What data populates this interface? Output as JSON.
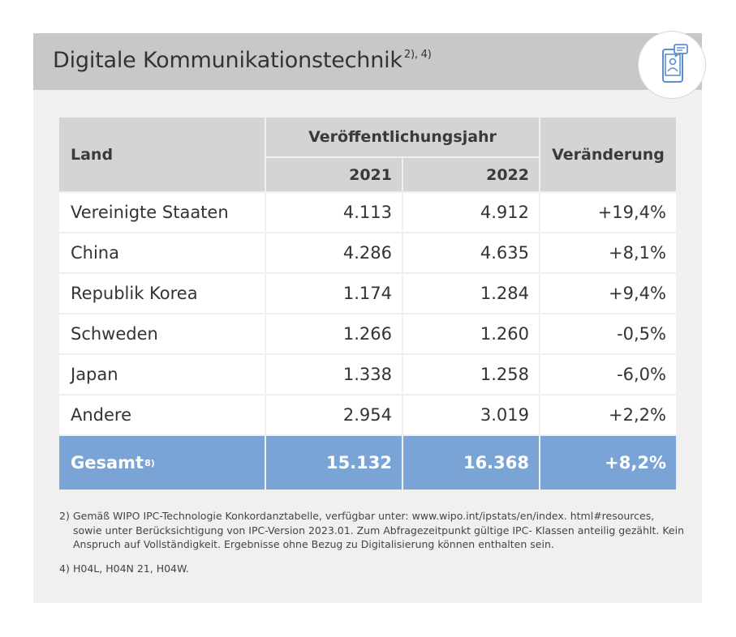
{
  "title": "Digitale Kommunikationstechnik",
  "title_footnotes": "2), 4)",
  "badge_icon": "mobile-chat-icon",
  "accent_color": "#7ba4d6",
  "table": {
    "col_land": "Land",
    "col_group": "Veröffentlichungsjahr",
    "col_y1": "2021",
    "col_y2": "2022",
    "col_change": "Veränderung",
    "rows": [
      {
        "land": "Vereinigte Staaten",
        "y1": "4.113",
        "y2": "4.912",
        "change": "+19,4%"
      },
      {
        "land": "China",
        "y1": "4.286",
        "y2": "4.635",
        "change": "+8,1%"
      },
      {
        "land": "Republik Korea",
        "y1": "1.174",
        "y2": "1.284",
        "change": "+9,4%"
      },
      {
        "land": "Schweden",
        "y1": "1.266",
        "y2": "1.260",
        "change": "-0,5%"
      },
      {
        "land": "Japan",
        "y1": "1.338",
        "y2": "1.258",
        "change": "-6,0%"
      },
      {
        "land": "Andere",
        "y1": "2.954",
        "y2": "3.019",
        "change": "+2,2%"
      }
    ],
    "total": {
      "label": "Gesamt",
      "footnote": "8)",
      "y1": "15.132",
      "y2": "16.368",
      "change": "+8,2%"
    }
  },
  "notes": [
    {
      "num": "2)",
      "text": "Gemäß WIPO IPC-Technologie Konkordanztabelle, verfügbar unter: www.wipo.int/ipstats/en/index. html#resources, sowie unter Berücksichtigung von IPC-Version 2023.01. Zum Abfragezeitpunkt gültige IPC- Klassen anteilig gezählt. Kein Anspruch auf Vollständigkeit. Ergebnisse ohne Bezug zu Digitalisierung können enthalten sein."
    },
    {
      "num": "4)",
      "text": "H04L, H04N 21, H04W."
    }
  ]
}
